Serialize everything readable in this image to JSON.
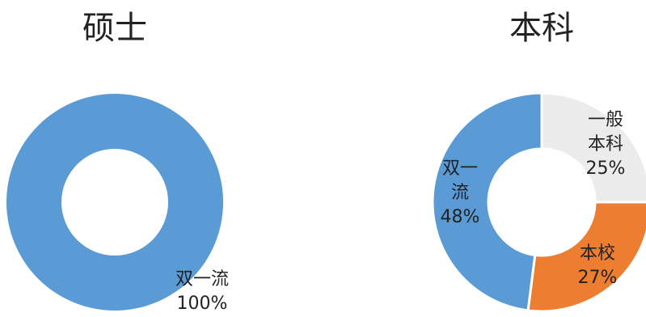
{
  "chart_data": [
    {
      "type": "pie",
      "title": "硕士",
      "slices": [
        {
          "label_lines": [
            "双一流"
          ],
          "value_label": "100%",
          "value": 100,
          "color": "#5b9bd5"
        }
      ]
    },
    {
      "type": "pie",
      "title": "本科",
      "slices": [
        {
          "label_lines": [
            "一般",
            "本科"
          ],
          "value_label": "25%",
          "value": 25,
          "color": "#ececec"
        },
        {
          "label_lines": [
            "本校"
          ],
          "value_label": "27%",
          "value": 27,
          "color": "#ed7d31"
        },
        {
          "label_lines": [
            "双一",
            "流"
          ],
          "value_label": "48%",
          "value": 48,
          "color": "#5b9bd5"
        }
      ]
    }
  ]
}
